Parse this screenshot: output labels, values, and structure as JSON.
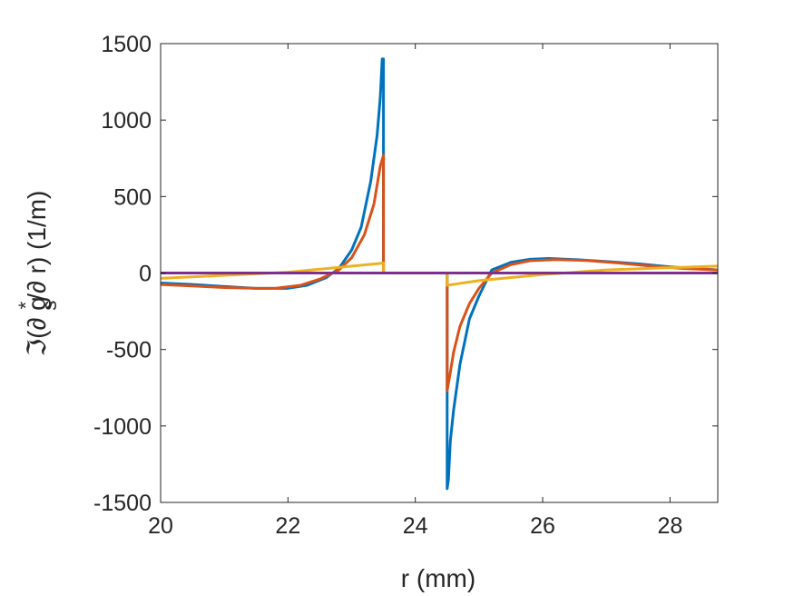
{
  "chart_data": {
    "type": "line",
    "title": "",
    "xlabel": "r   (mm)",
    "ylabel": "ℑ(∂ g_s^*/∂ r)   (1/m)",
    "ylabel_parts": {
      "prefix": "ℑ(∂ g",
      "sub": "s",
      "sup": "*",
      "suffix": "/∂ r)   (1/m)"
    },
    "xlim": [
      20,
      28.75
    ],
    "ylim": [
      -1500,
      1500
    ],
    "xticks": [
      20,
      22,
      24,
      26,
      28
    ],
    "yticks": [
      -1500,
      -1000,
      -500,
      0,
      500,
      1000,
      1500
    ],
    "xtick_labels": [
      "20",
      "22",
      "24",
      "26",
      "28"
    ],
    "ytick_labels": [
      "-1500",
      "-1000",
      "-500",
      "0",
      "500",
      "1000",
      "1500"
    ],
    "grid": false,
    "legend": "none",
    "series": [
      {
        "color": "#0072BD",
        "segments": [
          {
            "x": [
              20,
              20.5,
              21,
              21.5,
              22,
              22.3,
              22.6,
              22.8,
              23.0,
              23.15,
              23.3,
              23.4,
              23.45,
              23.48,
              23.5,
              23.5
            ],
            "y": [
              -65,
              -75,
              -88,
              -100,
              -100,
              -80,
              -30,
              30,
              150,
              300,
              600,
              900,
              1150,
              1400,
              1400,
              0
            ]
          },
          {
            "x": [
              24.5,
              24.5,
              24.52,
              24.55,
              24.6,
              24.7,
              24.85,
              25.0,
              25.2,
              25.5,
              25.8,
              26.1,
              26.5,
              27.0,
              27.5,
              28.0,
              28.75
            ],
            "y": [
              0,
              -1410,
              -1350,
              -1100,
              -900,
              -600,
              -300,
              -150,
              20,
              70,
              90,
              95,
              88,
              75,
              60,
              40,
              20
            ]
          }
        ]
      },
      {
        "color": "#D95319",
        "segments": [
          {
            "x": [
              20,
              20.5,
              21,
              21.5,
              21.8,
              22.2,
              22.5,
              22.8,
              23.0,
              23.2,
              23.35,
              23.45,
              23.5,
              23.5
            ],
            "y": [
              -75,
              -85,
              -95,
              -100,
              -100,
              -80,
              -40,
              20,
              100,
              250,
              450,
              700,
              770,
              0
            ]
          },
          {
            "x": [
              24.5,
              24.5,
              24.55,
              24.6,
              24.7,
              24.85,
              25.0,
              25.2,
              25.5,
              25.8,
              26.2,
              26.7,
              27.2,
              27.7,
              28.2,
              28.75
            ],
            "y": [
              0,
              -770,
              -650,
              -520,
              -350,
              -200,
              -100,
              0,
              55,
              80,
              88,
              82,
              65,
              45,
              30,
              20
            ]
          }
        ]
      },
      {
        "color": "#EDB120",
        "segments": [
          {
            "x": [
              20,
              22,
              23.5,
              23.5
            ],
            "y": [
              -35,
              5,
              65,
              0
            ]
          },
          {
            "x": [
              24.5,
              24.5,
              25.0,
              26.0,
              27.0,
              28.0,
              28.75
            ],
            "y": [
              0,
              -80,
              -50,
              -10,
              20,
              35,
              45
            ]
          }
        ]
      },
      {
        "color": "#7E2F8E",
        "segments": [
          {
            "x": [
              20,
              28.75
            ],
            "y": [
              0,
              0
            ]
          }
        ]
      }
    ]
  }
}
